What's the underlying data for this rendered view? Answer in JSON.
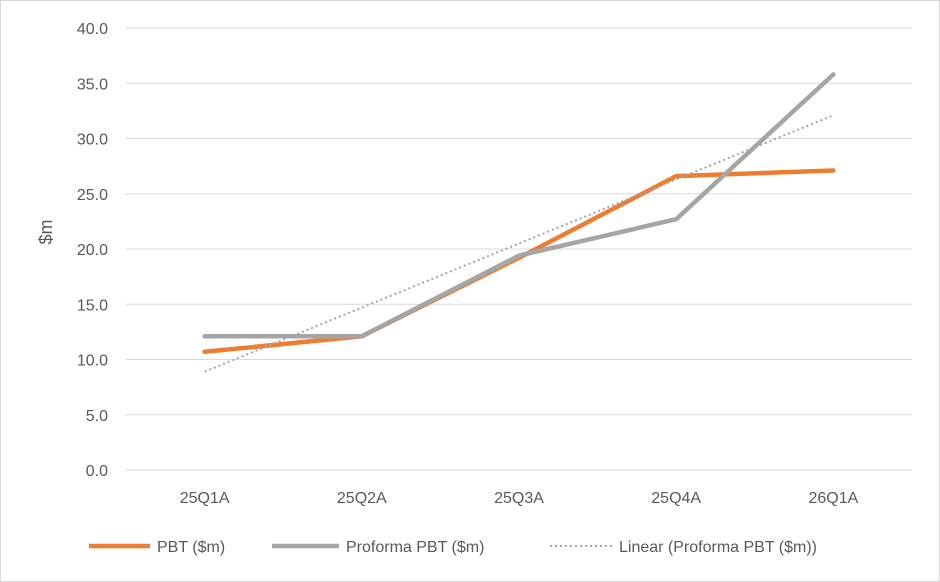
{
  "chart_data": {
    "type": "line",
    "categories": [
      "25Q1A",
      "25Q2A",
      "25Q3A",
      "25Q4A",
      "26Q1A"
    ],
    "series": [
      {
        "name": "PBT ($m)",
        "values": [
          10.7,
          12.1,
          19.2,
          26.6,
          27.1
        ],
        "color": "#ed7d31",
        "style": "solid"
      },
      {
        "name": "Proforma PBT ($m)",
        "values": [
          12.1,
          12.1,
          19.4,
          22.7,
          35.8
        ],
        "color": "#a5a5a5",
        "style": "solid"
      }
    ],
    "trendline": {
      "name": "Linear (Proforma PBT ($m))",
      "values": [
        8.9,
        14.7,
        20.5,
        26.3,
        32.1
      ],
      "color": "#a5a5a5",
      "style": "dotted"
    },
    "y_ticks": [
      "0.0",
      "5.0",
      "10.0",
      "15.0",
      "20.0",
      "25.0",
      "30.0",
      "35.0",
      "40.0"
    ],
    "ylim": [
      0,
      40
    ],
    "ylabel": "$m",
    "xlabel": "",
    "grid": true,
    "legend_position": "bottom"
  }
}
